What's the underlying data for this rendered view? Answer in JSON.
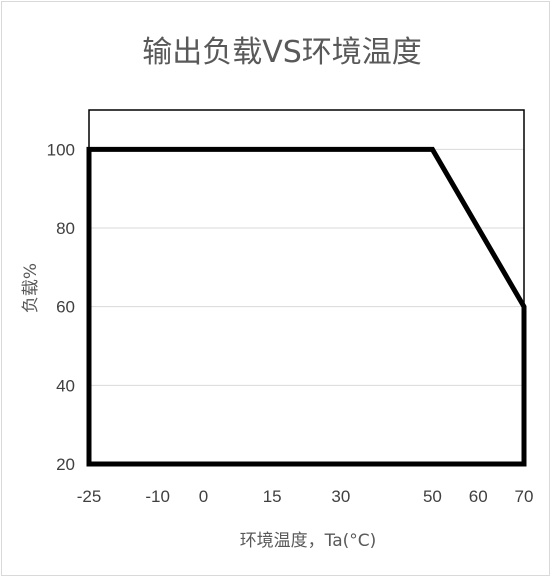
{
  "chart_data": {
    "type": "line",
    "title": "输出负载VS环境温度",
    "xlabel": "环境温度，Ta(°C)",
    "ylabel": "负载%",
    "xlim": [
      -25,
      70
    ],
    "ylim": [
      20,
      110
    ],
    "x_ticks": [
      -25,
      -10,
      0,
      15,
      30,
      50,
      60,
      70
    ],
    "y_ticks": [
      20,
      40,
      60,
      80,
      100
    ],
    "grid": true,
    "legend": "none",
    "series": [
      {
        "color": "#000000",
        "points": [
          {
            "x": -25,
            "y": 20
          },
          {
            "x": -25,
            "y": 100
          },
          {
            "x": 50,
            "y": 100
          },
          {
            "x": 70,
            "y": 60
          },
          {
            "x": 70,
            "y": 20
          },
          {
            "x": -25,
            "y": 20
          }
        ]
      }
    ]
  }
}
